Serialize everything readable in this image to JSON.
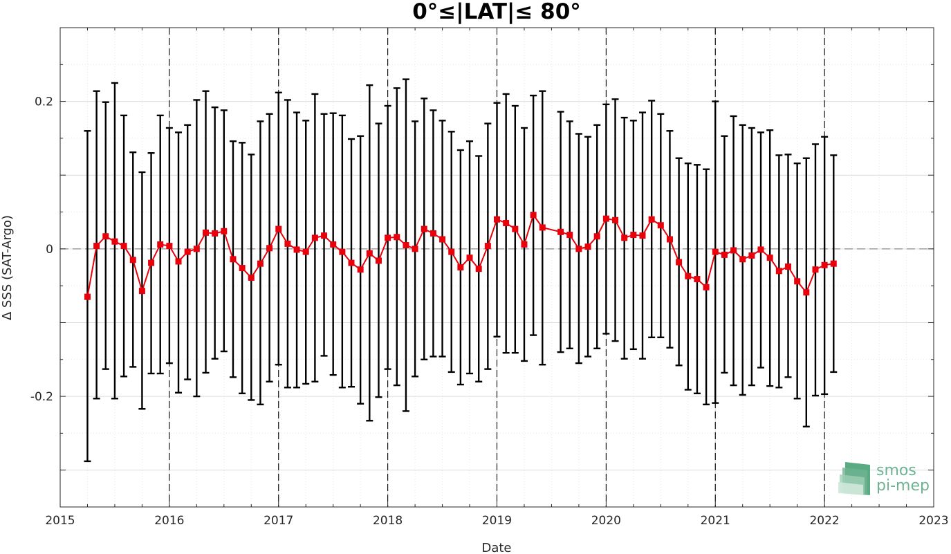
{
  "chart_data": {
    "type": "line",
    "title": "0°≤|LAT|≤ 80°",
    "xlabel": "Date",
    "ylabel": "Δ SSS (SAT-Argo)",
    "xlim": [
      2015,
      2023
    ],
    "ylim": [
      -0.35,
      0.3
    ],
    "x_ticks": [
      2015,
      2016,
      2017,
      2018,
      2019,
      2020,
      2021,
      2022,
      2023
    ],
    "x_tick_labels": [
      "2015",
      "2016",
      "2017",
      "2018",
      "2019",
      "2020",
      "2021",
      "2022",
      "2023"
    ],
    "y_ticks": [
      -0.2,
      0,
      0.2
    ],
    "y_tick_labels": [
      "-0.2",
      "0",
      "0.2"
    ],
    "grid": true,
    "zero_line": "dashed gray",
    "year_boundaries": "dashed black vertical lines",
    "series": [
      {
        "color": "#e8000b",
        "errorbar_color": "#000000",
        "marker": "square",
        "points": [
          {
            "x": "2015-04",
            "y": -0.065,
            "lo": -0.288,
            "hi": 0.16
          },
          {
            "x": "2015-05",
            "y": 0.004,
            "lo": -0.203,
            "hi": 0.214
          },
          {
            "x": "2015-06",
            "y": 0.017,
            "lo": -0.163,
            "hi": 0.199
          },
          {
            "x": "2015-07",
            "y": 0.01,
            "lo": -0.203,
            "hi": 0.225
          },
          {
            "x": "2015-08",
            "y": 0.004,
            "lo": -0.173,
            "hi": 0.181
          },
          {
            "x": "2015-09",
            "y": -0.015,
            "lo": -0.16,
            "hi": 0.131
          },
          {
            "x": "2015-10",
            "y": -0.057,
            "lo": -0.217,
            "hi": 0.104
          },
          {
            "x": "2015-11",
            "y": -0.019,
            "lo": -0.169,
            "hi": 0.13
          },
          {
            "x": "2015-12",
            "y": 0.006,
            "lo": -0.169,
            "hi": 0.181
          },
          {
            "x": "2016-01",
            "y": 0.004,
            "lo": -0.155,
            "hi": 0.164
          },
          {
            "x": "2016-02",
            "y": -0.017,
            "lo": -0.195,
            "hi": 0.158
          },
          {
            "x": "2016-03",
            "y": -0.004,
            "lo": -0.177,
            "hi": 0.168
          },
          {
            "x": "2016-04",
            "y": 0.0,
            "lo": -0.2,
            "hi": 0.202
          },
          {
            "x": "2016-05",
            "y": 0.022,
            "lo": -0.168,
            "hi": 0.214
          },
          {
            "x": "2016-06",
            "y": 0.021,
            "lo": -0.149,
            "hi": 0.192
          },
          {
            "x": "2016-07",
            "y": 0.024,
            "lo": -0.139,
            "hi": 0.188
          },
          {
            "x": "2016-08",
            "y": -0.014,
            "lo": -0.174,
            "hi": 0.146
          },
          {
            "x": "2016-09",
            "y": -0.026,
            "lo": -0.196,
            "hi": 0.144
          },
          {
            "x": "2016-10",
            "y": -0.039,
            "lo": -0.205,
            "hi": 0.128
          },
          {
            "x": "2016-11",
            "y": -0.02,
            "lo": -0.211,
            "hi": 0.173
          },
          {
            "x": "2016-12",
            "y": 0.001,
            "lo": -0.18,
            "hi": 0.183
          },
          {
            "x": "2017-01",
            "y": 0.027,
            "lo": -0.157,
            "hi": 0.212
          },
          {
            "x": "2017-02",
            "y": 0.007,
            "lo": -0.188,
            "hi": 0.202
          },
          {
            "x": "2017-03",
            "y": -0.001,
            "lo": -0.188,
            "hi": 0.185
          },
          {
            "x": "2017-04",
            "y": -0.004,
            "lo": -0.183,
            "hi": 0.174
          },
          {
            "x": "2017-05",
            "y": 0.015,
            "lo": -0.18,
            "hi": 0.21
          },
          {
            "x": "2017-06",
            "y": 0.018,
            "lo": -0.145,
            "hi": 0.183
          },
          {
            "x": "2017-07",
            "y": 0.006,
            "lo": -0.171,
            "hi": 0.184
          },
          {
            "x": "2017-08",
            "y": -0.004,
            "lo": -0.188,
            "hi": 0.181
          },
          {
            "x": "2017-09",
            "y": -0.019,
            "lo": -0.187,
            "hi": 0.149
          },
          {
            "x": "2017-10",
            "y": -0.028,
            "lo": -0.21,
            "hi": 0.153
          },
          {
            "x": "2017-11",
            "y": -0.006,
            "lo": -0.233,
            "hi": 0.222
          },
          {
            "x": "2017-12",
            "y": -0.016,
            "lo": -0.201,
            "hi": 0.17
          },
          {
            "x": "2018-01",
            "y": 0.015,
            "lo": -0.163,
            "hi": 0.194
          },
          {
            "x": "2018-02",
            "y": 0.016,
            "lo": -0.185,
            "hi": 0.218
          },
          {
            "x": "2018-03",
            "y": 0.005,
            "lo": -0.22,
            "hi": 0.23
          },
          {
            "x": "2018-04",
            "y": 0.0,
            "lo": -0.173,
            "hi": 0.173
          },
          {
            "x": "2018-05",
            "y": 0.027,
            "lo": -0.15,
            "hi": 0.204
          },
          {
            "x": "2018-06",
            "y": 0.021,
            "lo": -0.146,
            "hi": 0.188
          },
          {
            "x": "2018-07",
            "y": 0.013,
            "lo": -0.146,
            "hi": 0.174
          },
          {
            "x": "2018-08",
            "y": -0.004,
            "lo": -0.167,
            "hi": 0.159
          },
          {
            "x": "2018-09",
            "y": -0.025,
            "lo": -0.184,
            "hi": 0.134
          },
          {
            "x": "2018-10",
            "y": -0.012,
            "lo": -0.169,
            "hi": 0.146
          },
          {
            "x": "2018-11",
            "y": -0.027,
            "lo": -0.18,
            "hi": 0.126
          },
          {
            "x": "2018-12",
            "y": 0.004,
            "lo": -0.163,
            "hi": 0.17
          },
          {
            "x": "2019-01",
            "y": 0.04,
            "lo": -0.119,
            "hi": 0.198
          },
          {
            "x": "2019-02",
            "y": 0.035,
            "lo": -0.141,
            "hi": 0.21
          },
          {
            "x": "2019-03",
            "y": 0.027,
            "lo": -0.141,
            "hi": 0.194
          },
          {
            "x": "2019-04",
            "y": 0.006,
            "lo": -0.152,
            "hi": 0.164
          },
          {
            "x": "2019-05",
            "y": 0.046,
            "lo": -0.117,
            "hi": 0.208
          },
          {
            "x": "2019-06",
            "y": 0.029,
            "lo": -0.157,
            "hi": 0.214
          },
          {
            "x": "2019-08",
            "y": 0.023,
            "lo": -0.14,
            "hi": 0.186
          },
          {
            "x": "2019-09",
            "y": 0.019,
            "lo": -0.135,
            "hi": 0.173
          },
          {
            "x": "2019-10",
            "y": 0.0,
            "lo": -0.155,
            "hi": 0.156
          },
          {
            "x": "2019-11",
            "y": 0.003,
            "lo": -0.146,
            "hi": 0.152
          },
          {
            "x": "2019-12",
            "y": 0.017,
            "lo": -0.135,
            "hi": 0.168
          },
          {
            "x": "2020-01",
            "y": 0.041,
            "lo": -0.115,
            "hi": 0.196
          },
          {
            "x": "2020-02",
            "y": 0.039,
            "lo": -0.125,
            "hi": 0.203
          },
          {
            "x": "2020-03",
            "y": 0.015,
            "lo": -0.149,
            "hi": 0.178
          },
          {
            "x": "2020-04",
            "y": 0.019,
            "lo": -0.136,
            "hi": 0.174
          },
          {
            "x": "2020-05",
            "y": 0.018,
            "lo": -0.149,
            "hi": 0.185
          },
          {
            "x": "2020-06",
            "y": 0.04,
            "lo": -0.12,
            "hi": 0.201
          },
          {
            "x": "2020-07",
            "y": 0.032,
            "lo": -0.12,
            "hi": 0.183
          },
          {
            "x": "2020-08",
            "y": 0.013,
            "lo": -0.134,
            "hi": 0.16
          },
          {
            "x": "2020-09",
            "y": -0.018,
            "lo": -0.158,
            "hi": 0.123
          },
          {
            "x": "2020-10",
            "y": -0.037,
            "lo": -0.191,
            "hi": 0.116
          },
          {
            "x": "2020-11",
            "y": -0.041,
            "lo": -0.196,
            "hi": 0.114
          },
          {
            "x": "2020-12",
            "y": -0.052,
            "lo": -0.211,
            "hi": 0.108
          },
          {
            "x": "2021-01",
            "y": -0.004,
            "lo": -0.209,
            "hi": 0.2
          },
          {
            "x": "2021-02",
            "y": -0.008,
            "lo": -0.168,
            "hi": 0.153
          },
          {
            "x": "2021-03",
            "y": -0.002,
            "lo": -0.185,
            "hi": 0.18
          },
          {
            "x": "2021-04",
            "y": -0.014,
            "lo": -0.198,
            "hi": 0.168
          },
          {
            "x": "2021-05",
            "y": -0.009,
            "lo": -0.185,
            "hi": 0.164
          },
          {
            "x": "2021-06",
            "y": -0.001,
            "lo": -0.161,
            "hi": 0.158
          },
          {
            "x": "2021-07",
            "y": -0.012,
            "lo": -0.186,
            "hi": 0.161
          },
          {
            "x": "2021-08",
            "y": -0.03,
            "lo": -0.188,
            "hi": 0.127
          },
          {
            "x": "2021-09",
            "y": -0.024,
            "lo": -0.174,
            "hi": 0.128
          },
          {
            "x": "2021-10",
            "y": -0.044,
            "lo": -0.203,
            "hi": 0.116
          },
          {
            "x": "2021-11",
            "y": -0.059,
            "lo": -0.241,
            "hi": 0.123
          },
          {
            "x": "2021-12",
            "y": -0.028,
            "lo": -0.199,
            "hi": 0.142
          },
          {
            "x": "2022-01",
            "y": -0.022,
            "lo": -0.197,
            "hi": 0.152
          },
          {
            "x": "2022-02",
            "y": -0.02,
            "lo": -0.167,
            "hi": 0.127
          }
        ]
      }
    ]
  },
  "logo": {
    "line1": "smos",
    "line2": "pi-mep",
    "color": "#6fb392"
  }
}
